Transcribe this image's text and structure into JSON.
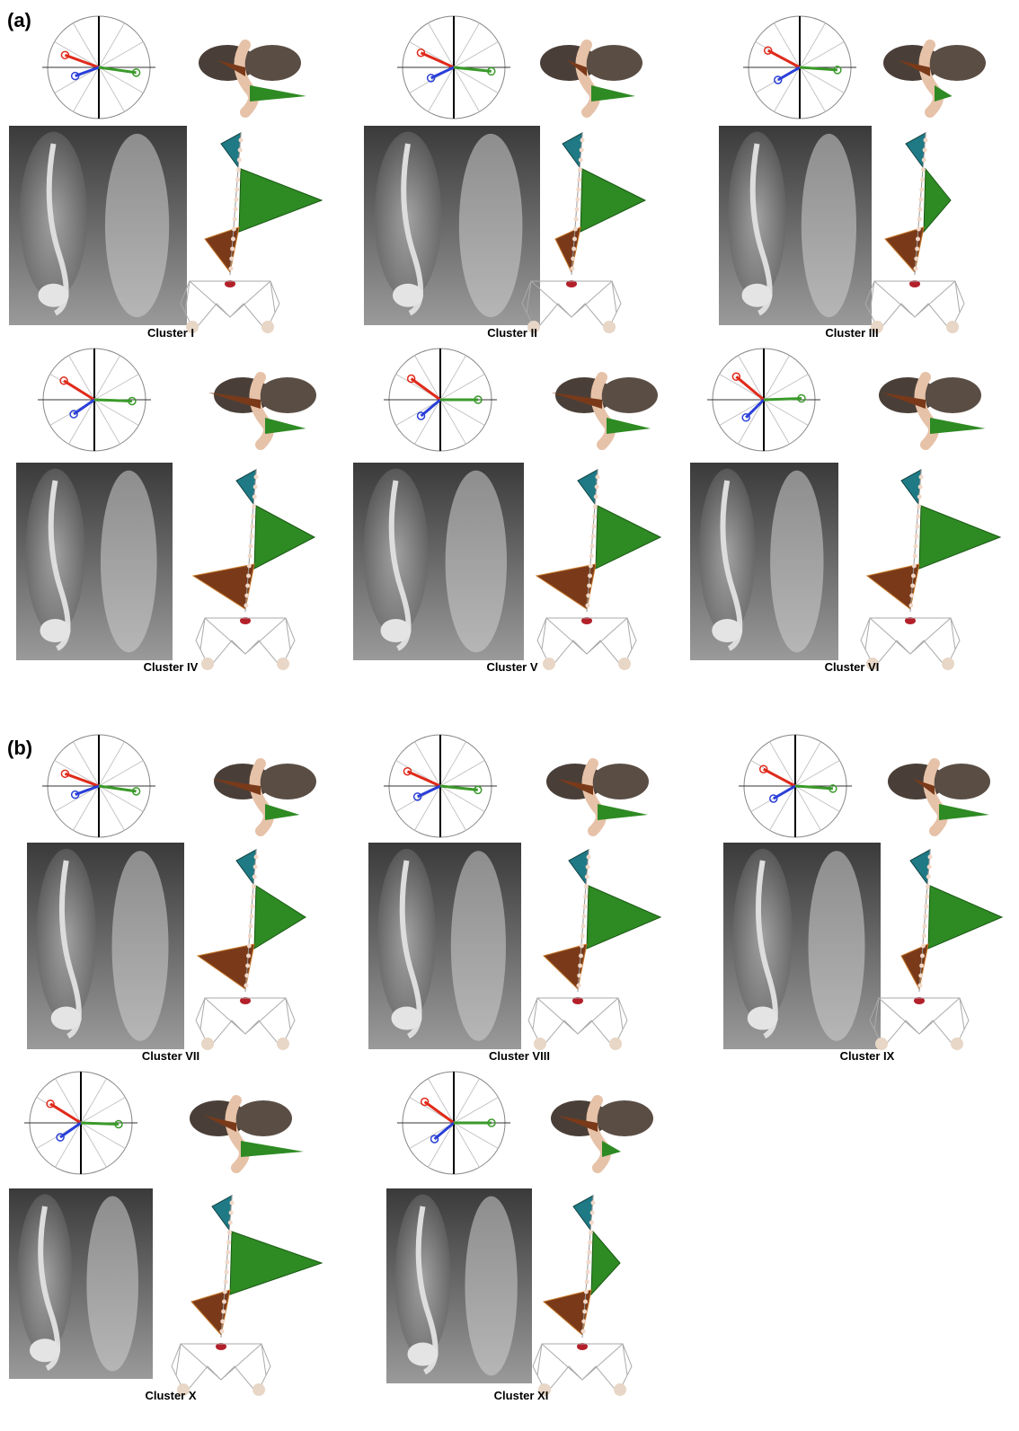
{
  "panels": [
    {
      "label": "(a)",
      "clusters": [
        "Cluster I",
        "Cluster II",
        "Cluster III",
        "Cluster IV",
        "Cluster V",
        "Cluster VI"
      ]
    },
    {
      "label": "(b)",
      "clusters": [
        "Cluster VII",
        "Cluster VIII",
        "Cluster IX",
        "Cluster X",
        "Cluster XI"
      ]
    }
  ]
}
